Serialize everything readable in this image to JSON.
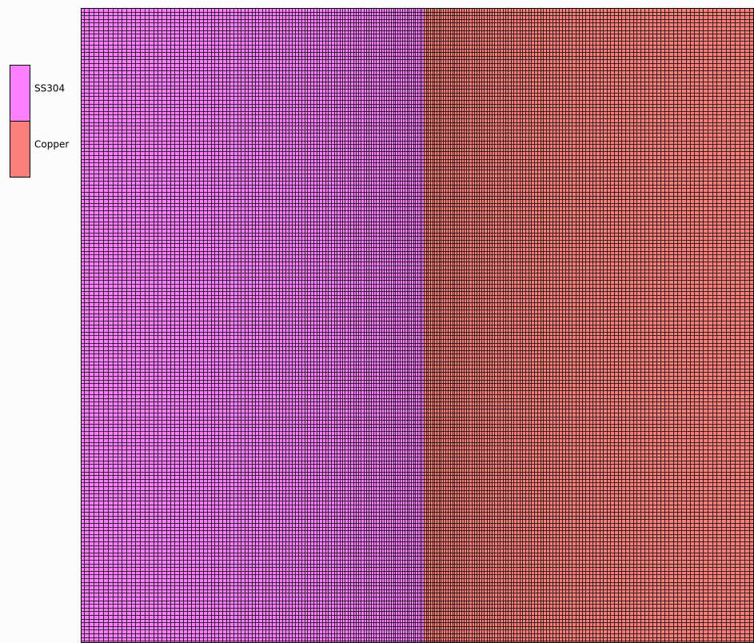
{
  "legend": {
    "materials": [
      {
        "name": "SS304",
        "color": "#ff80ff"
      },
      {
        "name": "Copper",
        "color": "#f88078"
      }
    ]
  }
}
